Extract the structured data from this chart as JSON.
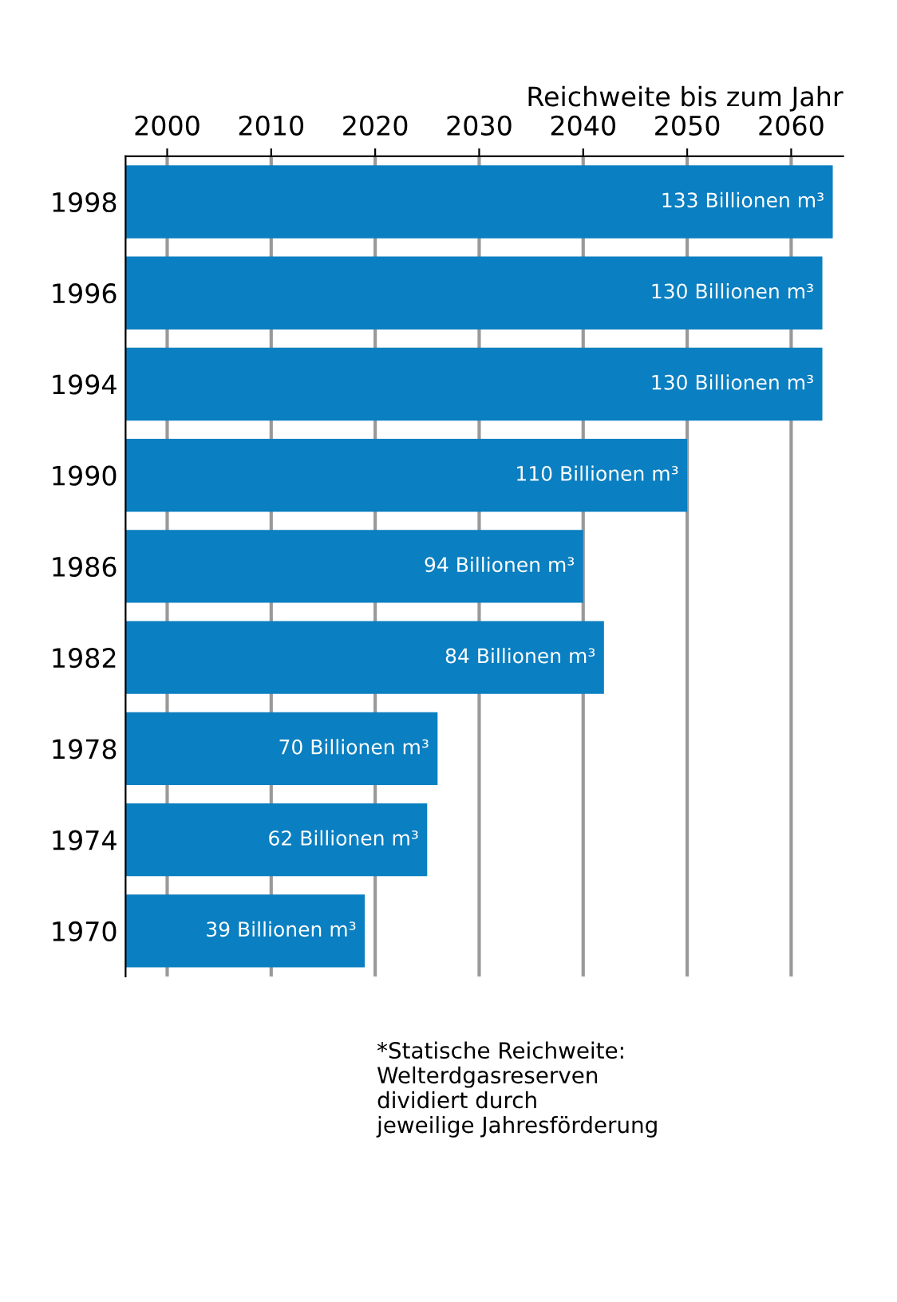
{
  "chart_data": {
    "type": "bar",
    "orientation": "horizontal",
    "xlabel": "Reichweite bis zum Jahr",
    "categories": [
      "1998",
      "1996",
      "1994",
      "1990",
      "1986",
      "1982",
      "1978",
      "1974",
      "1970"
    ],
    "values": [
      2064,
      2063,
      2063,
      2050,
      2040,
      2042,
      2026,
      2025,
      2019
    ],
    "color": "#0a7fc1",
    "xlim": [
      1996,
      2065
    ],
    "xticks": [
      2000,
      2010,
      2020,
      2030,
      2040,
      2050,
      2060
    ],
    "grid": "x",
    "annotations": [
      {
        "text": "133 Billionen m³",
        "x": 2064,
        "y": "1998"
      },
      {
        "text": "130 Billionen m³",
        "x": 2063,
        "y": "1996"
      },
      {
        "text": "130 Billionen m³",
        "x": 2063,
        "y": "1994"
      },
      {
        "text": "110 Billionen m³",
        "x": 2050,
        "y": "1990"
      },
      {
        "text": "94 Billionen m³",
        "x": 2040,
        "y": "1986"
      },
      {
        "text": "84 Billionen m³",
        "x": 2042,
        "y": "1982"
      },
      {
        "text": "70 Billionen m³",
        "x": 2026,
        "y": "1978"
      },
      {
        "text": "62 Billionen m³",
        "x": 2025,
        "y": "1974"
      },
      {
        "text": "39 Billionen m³",
        "x": 2019,
        "y": "1970"
      },
      "*Statische Reichweite:\nWelterdgasreserven\ndividiert durch\njeweilige Jahresförderung"
    ]
  }
}
